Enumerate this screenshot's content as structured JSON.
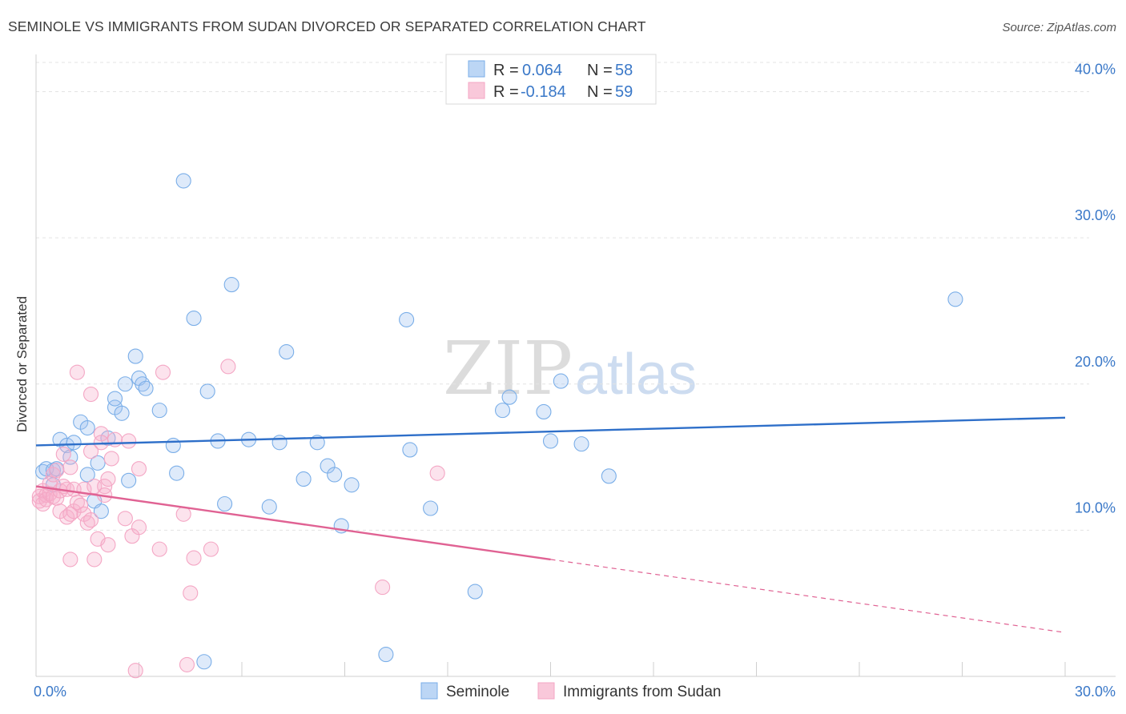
{
  "header": {
    "title": "SEMINOLE VS IMMIGRANTS FROM SUDAN DIVORCED OR SEPARATED CORRELATION CHART",
    "source": "Source: ZipAtlas.com"
  },
  "watermark": {
    "part1": "ZIP",
    "part2": "atlas"
  },
  "chart_data": {
    "type": "scatter",
    "title": "SEMINOLE VS IMMIGRANTS FROM SUDAN DIVORCED OR SEPARATED CORRELATION CHART",
    "xlabel": "",
    "ylabel": "Divorced or Separated",
    "xlim": [
      0,
      30
    ],
    "ylim": [
      0,
      42
    ],
    "x_tick_labels": [
      "0.0%",
      "30.0%"
    ],
    "y_ticks": [
      10,
      20,
      30,
      40
    ],
    "y_tick_labels": [
      "10.0%",
      "20.0%",
      "30.0%",
      "40.0%"
    ],
    "grid": true,
    "legend_position": "top-center",
    "series": [
      {
        "name": "Seminole",
        "color": "#7aaee8",
        "line_color": "#2e6fc9",
        "r": "0.064",
        "n": "58",
        "trend": {
          "x0": 0,
          "y0": 15.8,
          "x1": 30,
          "y1": 17.7
        },
        "points": [
          [
            0.2,
            14.0
          ],
          [
            0.3,
            14.2
          ],
          [
            0.5,
            14.1
          ],
          [
            0.6,
            14.2
          ],
          [
            0.7,
            16.2
          ],
          [
            0.9,
            15.8
          ],
          [
            1.1,
            16.0
          ],
          [
            1.0,
            15.0
          ],
          [
            1.3,
            17.4
          ],
          [
            1.5,
            17.0
          ],
          [
            1.5,
            13.8
          ],
          [
            1.7,
            12.0
          ],
          [
            1.8,
            14.6
          ],
          [
            1.9,
            11.3
          ],
          [
            2.1,
            16.3
          ],
          [
            2.3,
            18.4
          ],
          [
            2.3,
            19.0
          ],
          [
            2.5,
            18.0
          ],
          [
            2.6,
            20.0
          ],
          [
            2.7,
            13.4
          ],
          [
            2.9,
            21.9
          ],
          [
            3.0,
            20.4
          ],
          [
            3.1,
            20.0
          ],
          [
            3.2,
            19.7
          ],
          [
            3.6,
            18.2
          ],
          [
            4.0,
            15.8
          ],
          [
            4.1,
            13.9
          ],
          [
            4.3,
            33.9
          ],
          [
            4.6,
            24.5
          ],
          [
            4.9,
            1.0
          ],
          [
            5.0,
            19.5
          ],
          [
            5.3,
            16.1
          ],
          [
            5.5,
            11.8
          ],
          [
            5.7,
            26.8
          ],
          [
            6.2,
            16.2
          ],
          [
            6.8,
            11.6
          ],
          [
            7.1,
            16.0
          ],
          [
            7.3,
            22.2
          ],
          [
            7.8,
            13.5
          ],
          [
            8.2,
            16.0
          ],
          [
            8.5,
            14.4
          ],
          [
            8.7,
            13.8
          ],
          [
            8.9,
            10.3
          ],
          [
            9.2,
            13.1
          ],
          [
            10.2,
            1.5
          ],
          [
            10.8,
            24.4
          ],
          [
            10.9,
            15.5
          ],
          [
            11.5,
            11.5
          ],
          [
            12.8,
            5.8
          ],
          [
            13.6,
            18.2
          ],
          [
            13.8,
            19.1
          ],
          [
            14.8,
            18.1
          ],
          [
            15.0,
            16.1
          ],
          [
            15.3,
            20.2
          ],
          [
            15.9,
            15.9
          ],
          [
            16.7,
            13.7
          ],
          [
            26.8,
            25.8
          ],
          [
            0.5,
            13.1
          ]
        ]
      },
      {
        "name": "Immigrants from Sudan",
        "color": "#f4a6c4",
        "line_color": "#e06293",
        "r": "-0.184",
        "n": "59",
        "trend": {
          "x0": 0,
          "y0": 13.0,
          "x1": 15,
          "y1": 8.0,
          "x_dash_end": 30,
          "y_dash_end": 3.0
        },
        "points": [
          [
            0.1,
            12.3
          ],
          [
            0.1,
            12.0
          ],
          [
            0.2,
            11.8
          ],
          [
            0.2,
            12.7
          ],
          [
            0.3,
            12.4
          ],
          [
            0.3,
            12.1
          ],
          [
            0.4,
            12.5
          ],
          [
            0.4,
            13.2
          ],
          [
            0.5,
            12.3
          ],
          [
            0.5,
            13.8
          ],
          [
            0.6,
            12.2
          ],
          [
            0.6,
            14.1
          ],
          [
            0.7,
            12.7
          ],
          [
            0.7,
            11.3
          ],
          [
            0.8,
            15.2
          ],
          [
            0.8,
            13.0
          ],
          [
            0.9,
            12.8
          ],
          [
            0.9,
            10.9
          ],
          [
            1.0,
            14.3
          ],
          [
            1.0,
            11.1
          ],
          [
            1.1,
            12.8
          ],
          [
            1.1,
            11.3
          ],
          [
            1.2,
            11.9
          ],
          [
            1.2,
            20.8
          ],
          [
            1.3,
            11.7
          ],
          [
            1.4,
            12.8
          ],
          [
            1.4,
            11.1
          ],
          [
            1.5,
            10.5
          ],
          [
            1.6,
            15.4
          ],
          [
            1.6,
            19.3
          ],
          [
            1.7,
            13.0
          ],
          [
            1.8,
            9.4
          ],
          [
            1.9,
            16.6
          ],
          [
            1.9,
            16.0
          ],
          [
            2.0,
            13.0
          ],
          [
            2.0,
            12.4
          ],
          [
            2.1,
            13.5
          ],
          [
            2.1,
            9.0
          ],
          [
            2.2,
            14.9
          ],
          [
            2.3,
            16.2
          ],
          [
            2.6,
            10.8
          ],
          [
            2.7,
            16.1
          ],
          [
            2.8,
            9.6
          ],
          [
            2.9,
            0.4
          ],
          [
            3.0,
            10.2
          ],
          [
            3.0,
            14.2
          ],
          [
            3.6,
            8.7
          ],
          [
            3.7,
            20.8
          ],
          [
            4.3,
            11.1
          ],
          [
            4.4,
            0.8
          ],
          [
            4.5,
            5.7
          ],
          [
            4.6,
            8.1
          ],
          [
            5.1,
            8.7
          ],
          [
            5.6,
            21.2
          ],
          [
            10.1,
            6.1
          ],
          [
            11.7,
            13.9
          ],
          [
            1.7,
            8.0
          ],
          [
            1.0,
            8.0
          ],
          [
            1.6,
            10.7
          ]
        ]
      }
    ]
  }
}
